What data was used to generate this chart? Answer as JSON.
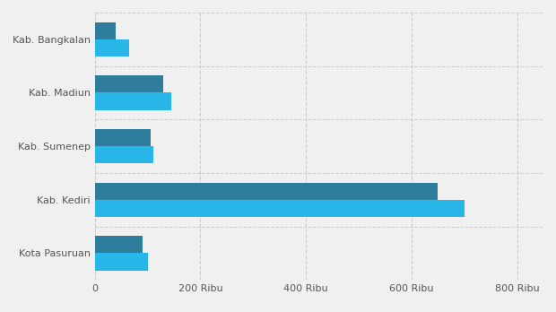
{
  "categories": [
    "Kota Pasuruan",
    "Kab. Kediri",
    "Kab. Sumenep",
    "Kab. Madiun",
    "Kab. Bangkalan"
  ],
  "values_dark": [
    90000,
    650000,
    105000,
    130000,
    40000
  ],
  "values_light": [
    100000,
    700000,
    110000,
    145000,
    65000
  ],
  "color_dark": "#2e7d9c",
  "color_light": "#29b6e8",
  "background_color": "#f0f0f0",
  "xlim": [
    0,
    850000
  ],
  "xtick_values": [
    0,
    200000,
    400000,
    600000,
    800000
  ],
  "xtick_labels": [
    "0",
    "200 Ribu",
    "400 Ribu",
    "600 Ribu",
    "800 Ribu"
  ],
  "bar_height": 0.32
}
